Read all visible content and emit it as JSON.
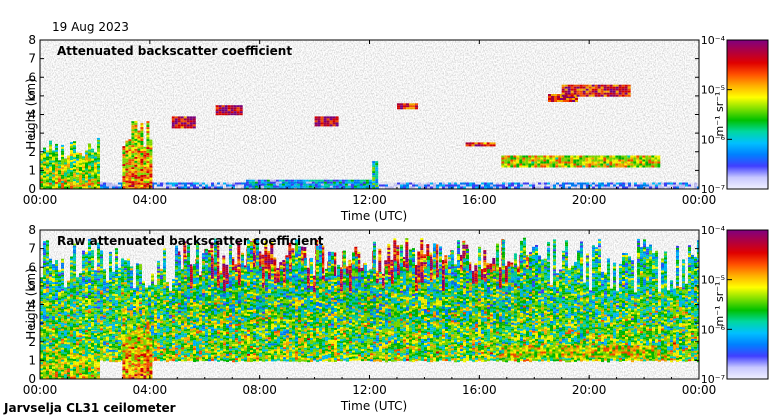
{
  "date": "19 Aug 2023",
  "site": "Jarvselja CL31 ceilometer",
  "colors": {
    "colormap": [
      "#f0f0ff",
      "#c8c8ff",
      "#4040ff",
      "#0080ff",
      "#00c0ff",
      "#00d8a0",
      "#00c000",
      "#80e000",
      "#ffff00",
      "#ffb000",
      "#ff5000",
      "#e00000",
      "#b00040",
      "#800080"
    ],
    "background": "#ffffff"
  },
  "chart_data": [
    {
      "type": "heatmap",
      "title": "Attenuated backscatter coefficient",
      "xlabel": "Time (UTC)",
      "ylabel": "Height (km)",
      "xlim": [
        0,
        24
      ],
      "ylim": [
        0,
        8
      ],
      "x_tick_labels": [
        "00:00",
        "04:00",
        "08:00",
        "12:00",
        "16:00",
        "20:00",
        "00:00"
      ],
      "y_tick_labels": [
        "0",
        "1",
        "2",
        "3",
        "4",
        "5",
        "6",
        "7",
        "8"
      ],
      "colorbar": {
        "label": "m⁻¹ sr⁻¹",
        "scale": "log",
        "range": [
          1e-07,
          0.0001
        ],
        "tick_labels": [
          "10⁻⁴",
          "10⁻⁵",
          "10⁻⁶",
          "10⁻⁷"
        ]
      },
      "features": [
        {
          "feature": "boundary-layer aerosol",
          "t0": 0,
          "t1": 24,
          "h_top": 0.35,
          "log_beta": -6.6
        },
        {
          "feature": "precipitation/fog",
          "t0": 0,
          "t1": 2.1,
          "h_top": 2.8,
          "log_beta": -5.4
        },
        {
          "feature": "precipitation/fog",
          "t0": 3.0,
          "t1": 4.0,
          "h_top": 3.9,
          "log_beta": -5.0
        },
        {
          "feature": "aerosol layer",
          "t0": 7.5,
          "t1": 12.0,
          "h_top": 0.5,
          "log_beta": -6.2
        },
        {
          "feature": "low cloud",
          "t0": 12.1,
          "t1": 12.3,
          "h_top": 1.5,
          "log_beta": -5.8
        },
        {
          "feature": "cloud",
          "t0": 4.8,
          "t1": 5.6,
          "h_bottom": 3.3,
          "h_top": 3.9,
          "log_beta": -4.3
        },
        {
          "feature": "cloud",
          "t0": 6.4,
          "t1": 7.3,
          "h_bottom": 4.0,
          "h_top": 4.5,
          "log_beta": -4.2
        },
        {
          "feature": "cloud",
          "t0": 10.0,
          "t1": 10.8,
          "h_bottom": 3.4,
          "h_top": 3.9,
          "log_beta": -4.3
        },
        {
          "feature": "cloud",
          "t0": 13.0,
          "t1": 13.7,
          "h_bottom": 4.3,
          "h_top": 4.6,
          "log_beta": -4.4
        },
        {
          "feature": "cloud",
          "t0": 15.5,
          "t1": 16.5,
          "h_bottom": 2.3,
          "h_top": 2.5,
          "log_beta": -4.6
        },
        {
          "feature": "cloud",
          "t0": 18.5,
          "t1": 19.5,
          "h_bottom": 4.7,
          "h_top": 5.1,
          "log_beta": -4.5
        },
        {
          "feature": "cloud",
          "t0": 19.0,
          "t1": 21.5,
          "h_bottom": 5.0,
          "h_top": 5.6,
          "log_beta": -4.5
        },
        {
          "feature": "low cloud",
          "t0": 16.8,
          "t1": 22.5,
          "h_bottom": 1.2,
          "h_top": 1.8,
          "log_beta": -5.2
        }
      ]
    },
    {
      "type": "heatmap",
      "title": "Raw attenuated backscatter coefficient",
      "xlabel": "Time (UTC)",
      "ylabel": "Height (km)",
      "xlim": [
        0,
        24
      ],
      "ylim": [
        0,
        8
      ],
      "x_tick_labels": [
        "00:00",
        "04:00",
        "08:00",
        "12:00",
        "16:00",
        "20:00",
        "00:00"
      ],
      "y_tick_labels": [
        "0",
        "1",
        "2",
        "3",
        "4",
        "5",
        "6",
        "7",
        "8"
      ],
      "colorbar": {
        "label": "m⁻¹ sr⁻¹",
        "scale": "log",
        "range": [
          1e-07,
          0.0001
        ],
        "tick_labels": [
          "10⁻⁴",
          "10⁻⁵",
          "10⁻⁶",
          "10⁻⁷"
        ]
      },
      "features": [
        {
          "feature": "daytime solar noise",
          "t0": 5,
          "t1": 18,
          "h_bottom": 3,
          "h_top": 7.6,
          "log_beta": -4.3
        },
        {
          "feature": "background noise",
          "t0": 0,
          "t1": 24,
          "h_bottom": 1,
          "h_top": 7.6,
          "log_beta": -5.6
        },
        {
          "feature": "precipitation/fog",
          "t0": 0,
          "t1": 2.1,
          "h_top": 2.8,
          "log_beta": -5.4
        },
        {
          "feature": "precipitation/fog",
          "t0": 3.0,
          "t1": 4.0,
          "h_top": 3.9,
          "log_beta": -5.0
        },
        {
          "feature": "low cloud",
          "t0": 16.8,
          "t1": 22.5,
          "h_bottom": 1.2,
          "h_top": 1.8,
          "log_beta": -5.2
        }
      ]
    }
  ]
}
